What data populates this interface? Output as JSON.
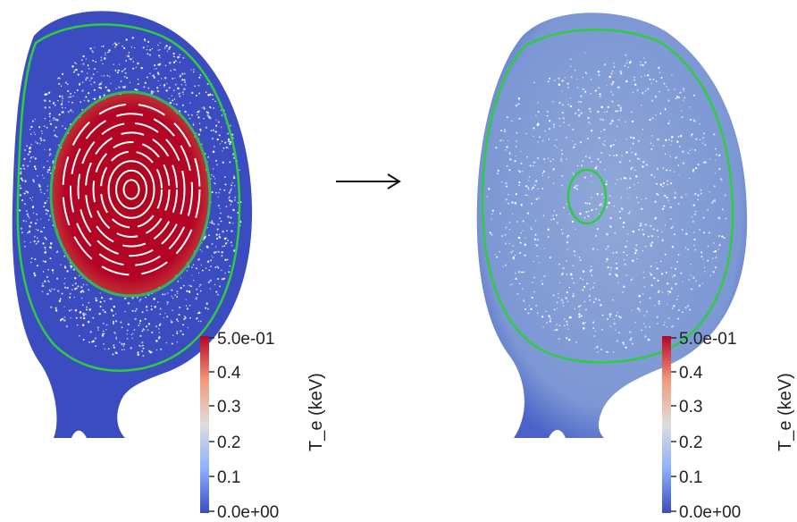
{
  "figure": {
    "panels": [
      {
        "id": "before",
        "colorbar": {
          "title": "T_e (keV)",
          "ticks": [
            "5.0e-01",
            "0.4",
            "0.3",
            "0.2",
            "0.1",
            "0.0e+00"
          ]
        },
        "core_temperature_keV": 0.5,
        "edge_temperature_keV": 0.0
      },
      {
        "id": "after",
        "colorbar": {
          "title": "T_e (keV)",
          "ticks": [
            "5.0e-01",
            "0.4",
            "0.3",
            "0.2",
            "0.1",
            "0.0e+00"
          ]
        },
        "core_temperature_keV": 0.07,
        "edge_temperature_keV": 0.0
      }
    ],
    "transition_arrow": "→"
  },
  "colors": {
    "cold": "#3b4cc0",
    "mid": "#dddddd",
    "hot": "#b40426",
    "flux_surface": "#2ecc40",
    "particles": "#ffffff"
  }
}
